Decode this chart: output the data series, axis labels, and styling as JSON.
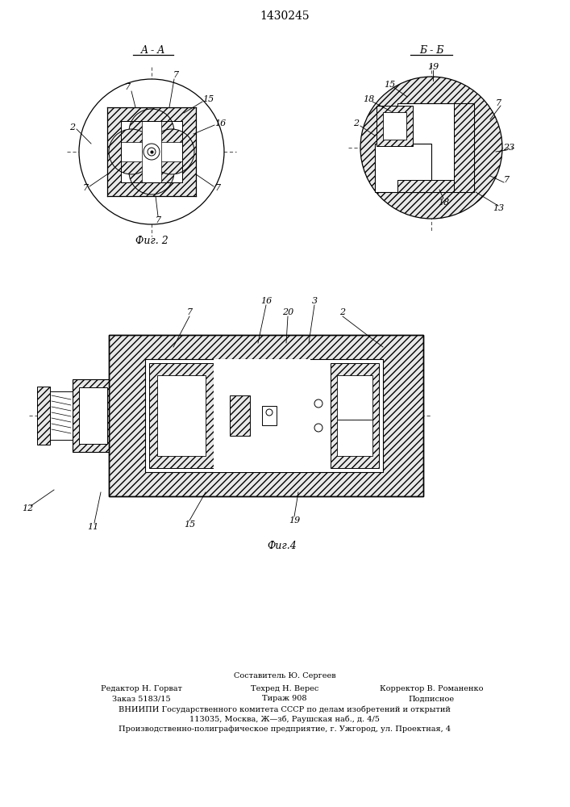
{
  "title": "1430245",
  "background_color": "#ffffff",
  "fig2_caption": "Фиг. 2",
  "fig4_caption": "Фиг.4",
  "footer_lines": [
    "Составитель Ю. Сергеев",
    "Редактор Н. Горват",
    "Техред Н. Верес",
    "Корректор В. Романенко",
    "Заказ 5183/15",
    "Тираж 908",
    "Подписное",
    "ВНИИПИ Государственного комитета СССР по делам изобретений и открытий",
    "113035, Москва, Ж—зб, Раушская наб., д. 4/5",
    "Производственно-полиграфическое предприятие, г. Ужгород, ул. Проектная, 4"
  ],
  "line_color": "#000000"
}
